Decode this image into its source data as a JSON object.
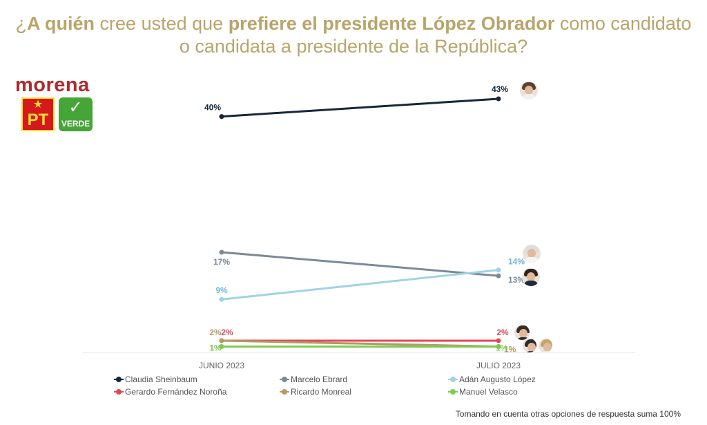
{
  "title": {
    "line1_pre": "¿",
    "line1_bold1": "A quién",
    "line1_mid": " cree usted que ",
    "line1_bold2": "prefiere el presidente López Obrador",
    "line1_post": " como candidato",
    "line2": "o candidata a presidente de la República?"
  },
  "logos": {
    "morena": "morena",
    "pt": "PT",
    "verde": "VERDE"
  },
  "chart_data": {
    "type": "line",
    "categories": [
      "JUNIO 2023",
      "JULIO 2023"
    ],
    "ylim": [
      0,
      45
    ],
    "grid": false,
    "legend_position": "bottom",
    "value_suffix": "%",
    "series": [
      {
        "name": "Claudia Sheinbaum",
        "values": [
          40,
          43
        ],
        "color": "#14283a"
      },
      {
        "name": "Marcelo Ebrard",
        "values": [
          17,
          13
        ],
        "color": "#7a8a99"
      },
      {
        "name": "Adán Augusto López",
        "values": [
          9,
          14
        ],
        "color": "#9fd3e6"
      },
      {
        "name": "Gerardo Fernández Noroña",
        "values": [
          2,
          2
        ],
        "color": "#e2485a"
      },
      {
        "name": "Ricardo Monreal",
        "values": [
          2,
          1
        ],
        "color": "#b39a64"
      },
      {
        "name": "Manuel Velasco",
        "values": [
          1,
          1
        ],
        "color": "#7ecb52"
      }
    ]
  },
  "footnote": "Tomando en cuenta otras opciones de respuesta suma 100%"
}
